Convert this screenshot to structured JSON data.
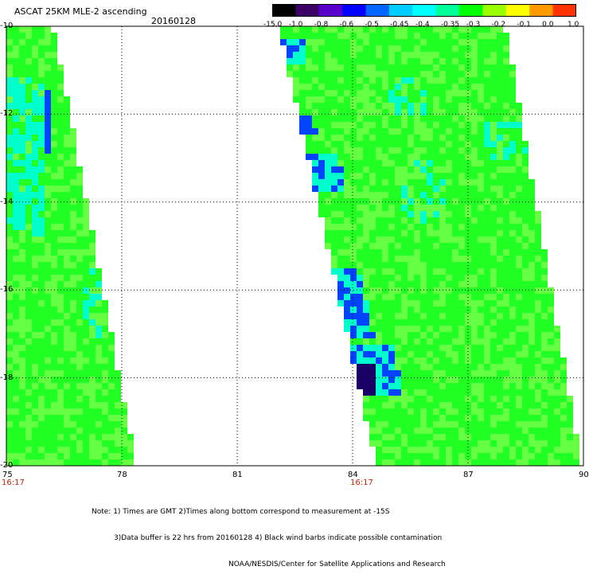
{
  "header": {
    "title": "ASCAT 25KM MLE-2 ascending",
    "date": "20160128"
  },
  "colorbar": {
    "labels": [
      "-15.0",
      "-1.0",
      "-0.8",
      "-0.6",
      "-0.5",
      "-0.45",
      "-0.4",
      "-0.35",
      "-0.3",
      "-0.2",
      "-0.1",
      "0.0",
      "1.0"
    ],
    "colors": [
      "#000000",
      "#3a0066",
      "#5a00cc",
      "#0000ff",
      "#0066ff",
      "#00ccff",
      "#00ffff",
      "#00ff99",
      "#00ff00",
      "#99ff00",
      "#ffff00",
      "#ff9900",
      "#ff3300"
    ]
  },
  "map": {
    "lat_labels": [
      "-10",
      "-12",
      "-14",
      "-16",
      "-18",
      "-20"
    ],
    "lon_labels": [
      "75",
      "78",
      "81",
      "84",
      "87",
      "90"
    ],
    "time_labels": [
      "16:17",
      "16:17"
    ],
    "swath_colors": {
      "base": "#22ff22",
      "light": "#66ff44",
      "cyan": "#00ffcc",
      "blue": "#0044ff",
      "deep": "#1a0066"
    }
  },
  "notes": {
    "line1": "Note: 1) Times are GMT 2)Times along bottom correspond to measurement at -15S",
    "line2": "3)Data buffer is 22 hrs from 20160128 4) Black wind barbs indicate possible contamination",
    "line3": "NOAA/NESDIS/Center for Satellite Applications and Research"
  }
}
